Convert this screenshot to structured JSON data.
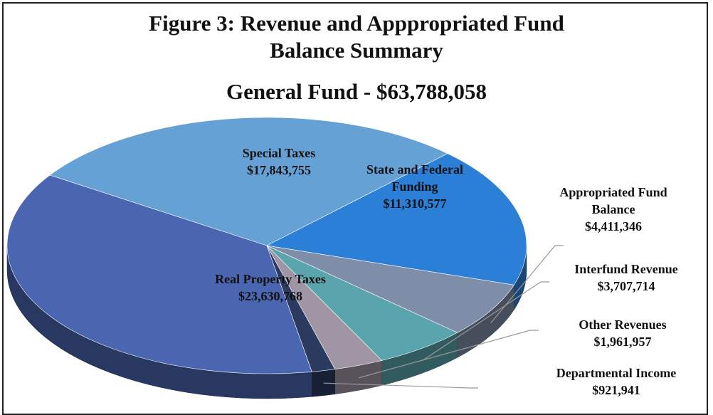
{
  "chart_data": {
    "type": "pie",
    "title": "Figure 3: Revenue and Apppropriated Fund Balance Summary",
    "subtitle": "General Fund - $63,788,058",
    "categories": [
      "Real Property Taxes",
      "Special Taxes",
      "State and Federal Funding",
      "Appropriated Fund Balance",
      "Interfund Revenue",
      "Other Revenues",
      "Departmental Income"
    ],
    "values": [
      23630768,
      17843755,
      11310577,
      4411346,
      3707714,
      1961957,
      921941
    ],
    "value_labels": [
      "$23,630,768",
      "$17,843,755",
      "$11,310,577",
      "$4,411,346",
      "$3,707,714",
      "$1,961,957",
      "$921,941"
    ],
    "colors": [
      "#4a66b0",
      "#66a1d6",
      "#2b7fd6",
      "#7f8ea8",
      "#5aa5ad",
      "#a095a5",
      "#2b3b60"
    ]
  }
}
